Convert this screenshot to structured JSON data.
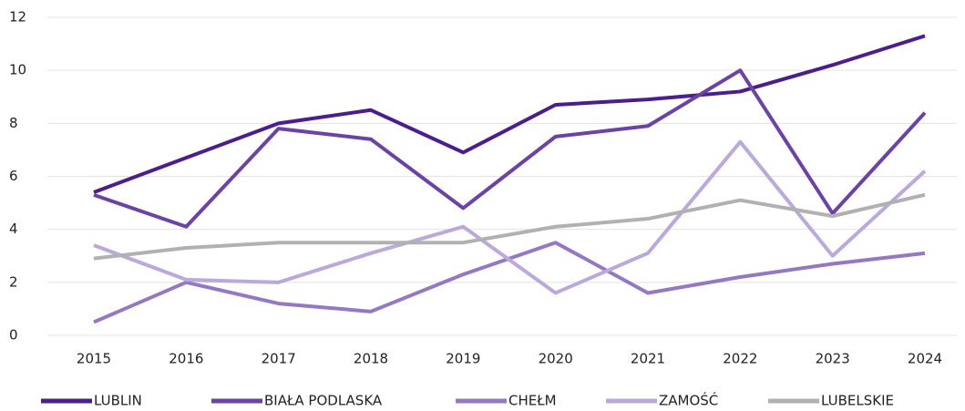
{
  "chart_data": {
    "type": "line",
    "categories": [
      "2015",
      "2016",
      "2017",
      "2018",
      "2019",
      "2020",
      "2021",
      "2022",
      "2023",
      "2024"
    ],
    "series": [
      {
        "name": "LUBLIN",
        "color": "#4b1d8e",
        "values": [
          5.4,
          6.7,
          8.0,
          8.5,
          6.9,
          8.7,
          8.9,
          9.2,
          10.2,
          11.3
        ]
      },
      {
        "name": "BIAŁA PODLASKA",
        "color": "#6b42a8",
        "values": [
          5.3,
          4.1,
          7.8,
          7.4,
          4.8,
          7.5,
          7.9,
          10.0,
          4.6,
          8.4
        ]
      },
      {
        "name": "CHEŁM",
        "color": "#9478c3",
        "values": [
          0.5,
          2.0,
          1.2,
          0.9,
          2.3,
          3.5,
          1.6,
          2.2,
          2.7,
          3.1
        ]
      },
      {
        "name": "ZAMOŚĆ",
        "color": "#bba8dd",
        "values": [
          3.4,
          2.1,
          2.0,
          3.1,
          4.1,
          1.6,
          3.1,
          7.3,
          3.0,
          6.2
        ]
      },
      {
        "name": "LUBELSKIE",
        "color": "#b1b1b1",
        "values": [
          2.9,
          3.3,
          3.5,
          3.5,
          3.5,
          4.1,
          4.4,
          5.1,
          4.5,
          5.3
        ]
      }
    ],
    "ylim": [
      0,
      12
    ],
    "yticks": [
      0,
      2,
      4,
      6,
      8,
      10,
      12
    ],
    "grid": true,
    "legend": "bottom"
  }
}
